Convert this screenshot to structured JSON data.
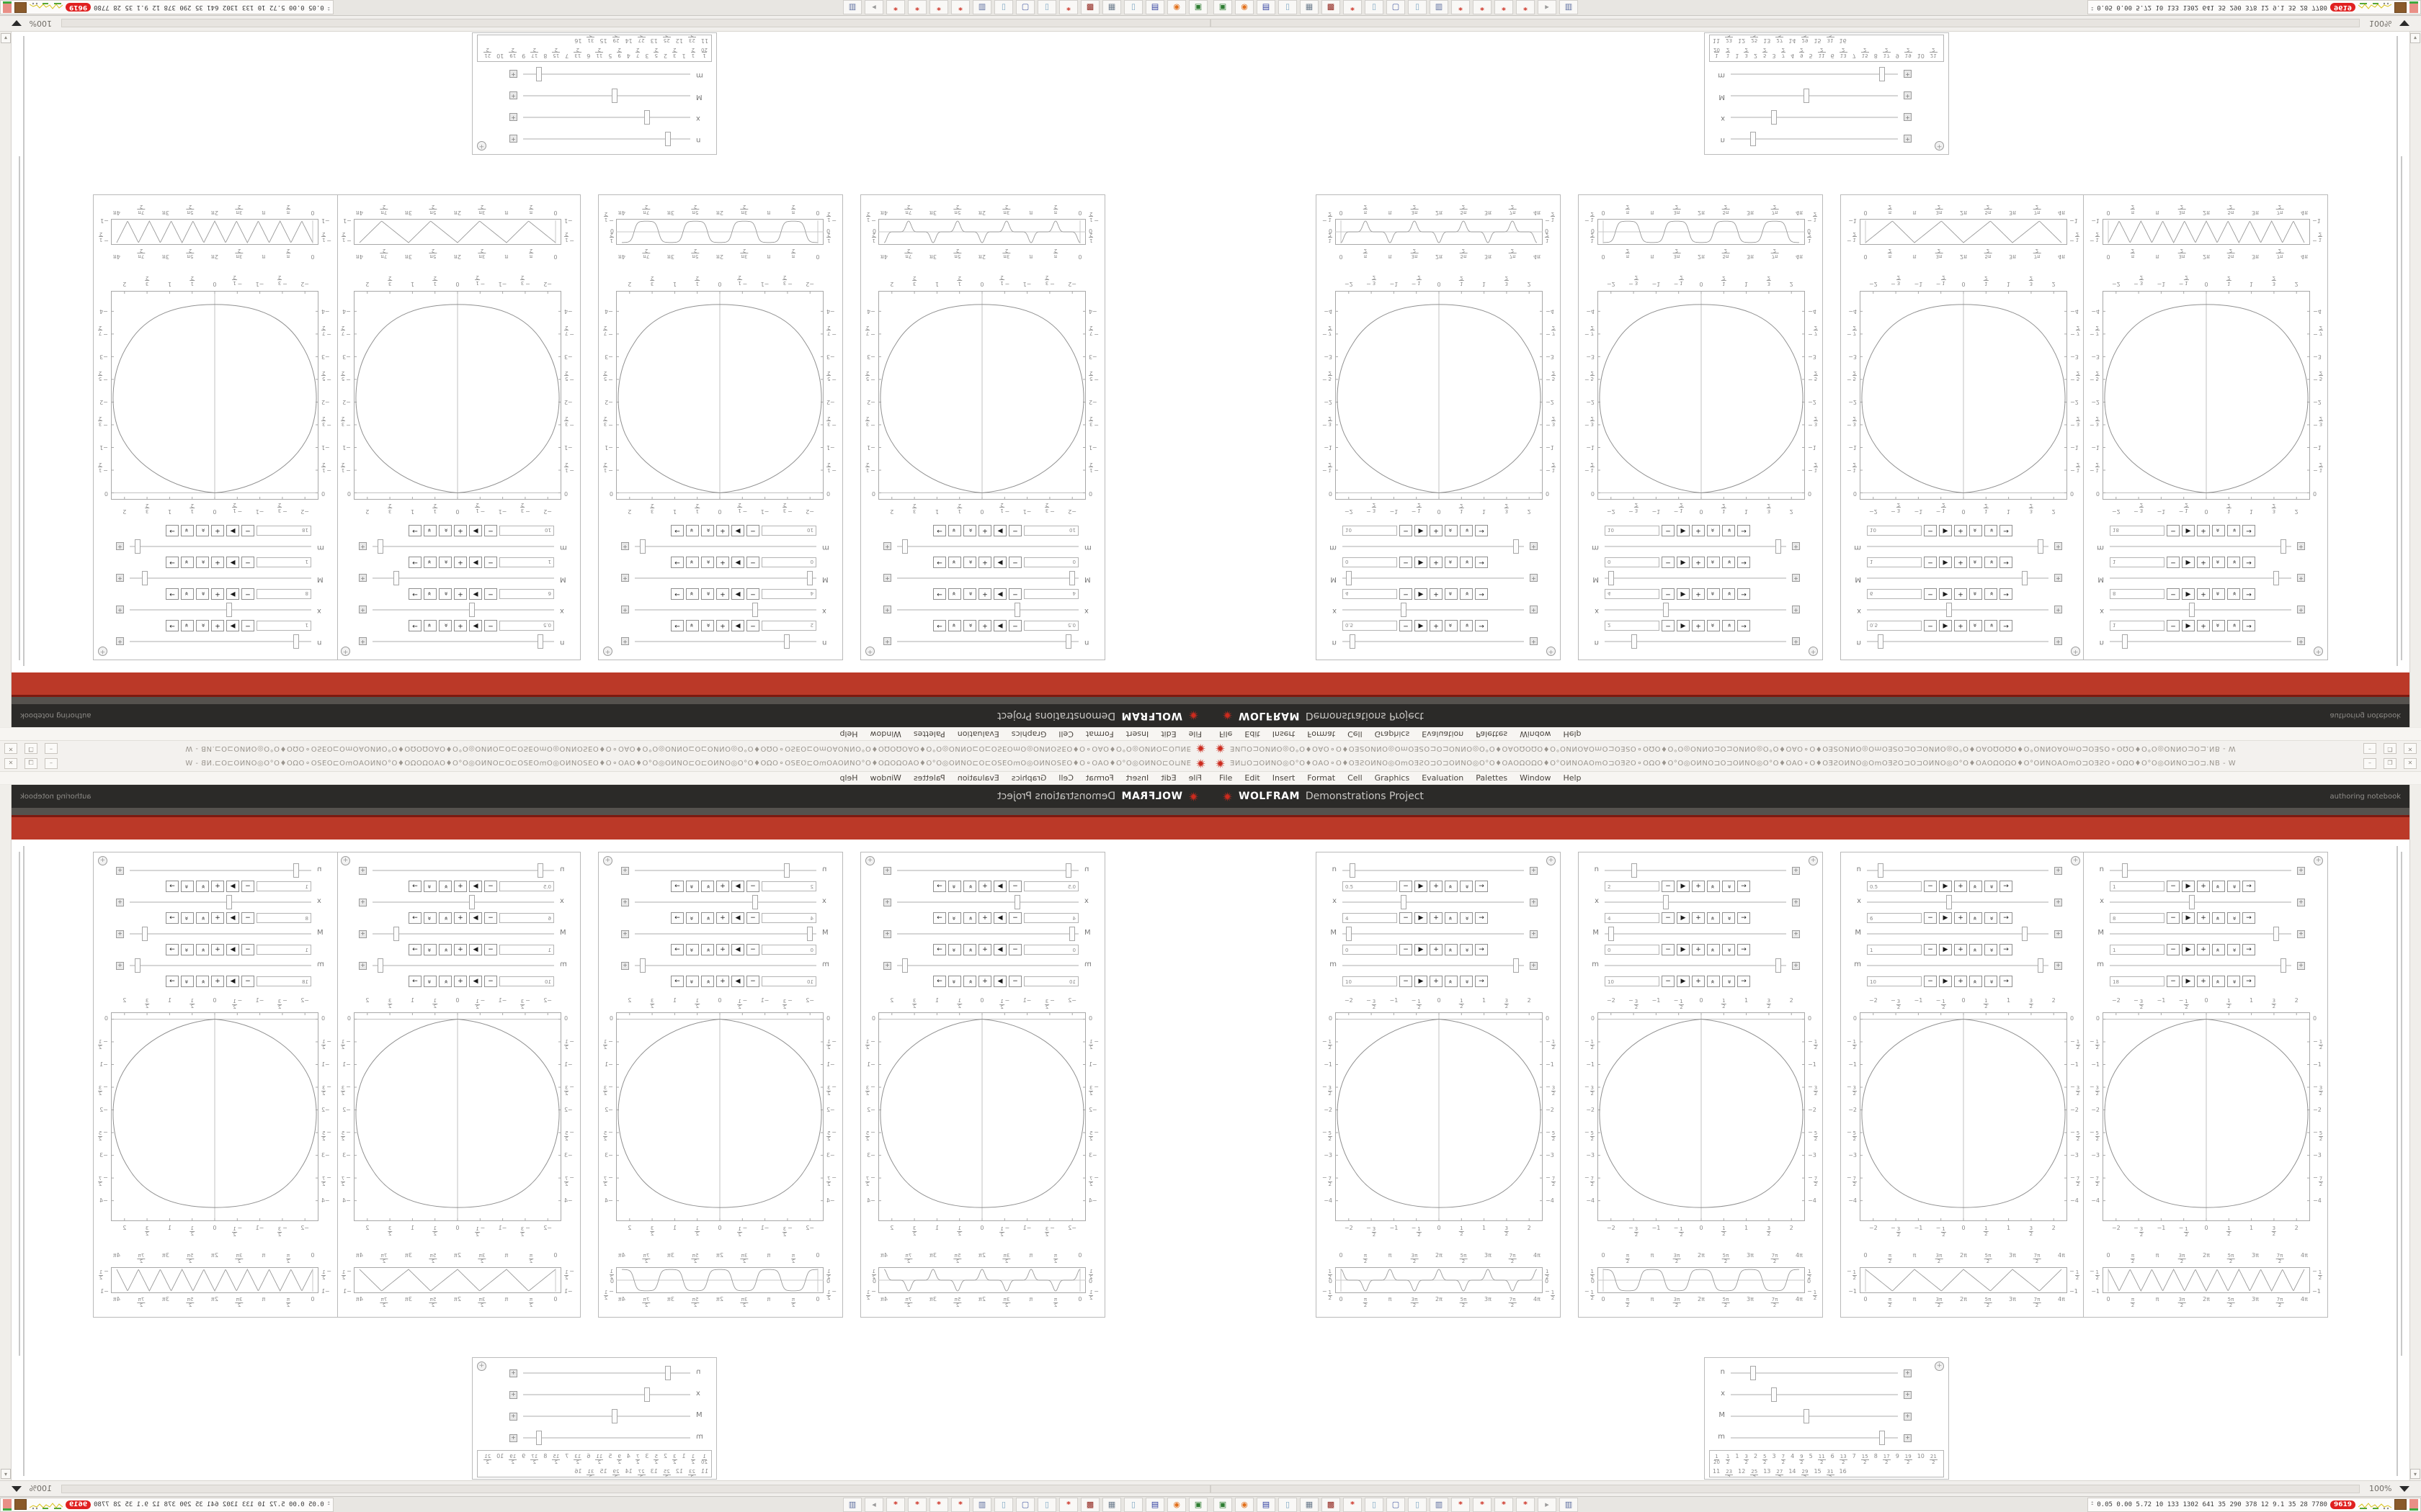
{
  "window": {
    "title_glyphs": "ƎͶ⊔O⊐OͶNO◎O°O♦OΑO⚬O♦OƎƧOͶNO◎OmOƎƧO⊐O⊐OͶNO◎O°O♦OΑOΩOΩO♦O°OͶNOΑOmO⊐OƎƧO⚬OΩO♦O°O◎OͶNO⊐O⊐OͶNO◎O°O♦OΑO⚬O♦OƎƧOͶNO◎OmOƎƧO⊐O⊐OͶNO◎O°O♦OΑOΩOΩO♦O°OͶNOΑOmO⊐OƎƧO⚬OΩO♦O°O◎OͶNO⊐O⊐.NB - W",
    "minimize": "–",
    "restore": "❐",
    "close": "✕"
  },
  "menu": {
    "items": [
      "File",
      "Edit",
      "Insert",
      "Format",
      "Cell",
      "Graphics",
      "Evaluation",
      "Palettes",
      "Window",
      "Help"
    ]
  },
  "banner": {
    "brand_bold": "WOLFRAM",
    "brand_rest": "Demonstrations Project",
    "right_label": "authoring notebook"
  },
  "colors": {
    "banner_bg": "#2b2a28",
    "red_band": "#bb3928",
    "dark_red_line": "#7c1a10",
    "gray_strip": "#55524e",
    "accent_red": "#cc2b1e",
    "badge_red": "#e02020"
  },
  "statusbar": {
    "zoom_level": "100%"
  },
  "taskbar": {
    "icons": [
      {
        "name": "terminal-icon",
        "glyph": "▣",
        "color": "#2e7d32"
      },
      {
        "name": "firefox-icon",
        "glyph": "◉",
        "color": "#e2711d"
      },
      {
        "name": "floppy64-icon",
        "glyph": "▤",
        "color": "#2b3a9e"
      },
      {
        "name": "notepad-icon",
        "glyph": "▯",
        "color": "#7da7c4"
      },
      {
        "name": "calculator-icon",
        "glyph": "▦",
        "color": "#6b7b8c"
      },
      {
        "name": "redapp-icon",
        "glyph": "▩",
        "color": "#8e1f17"
      },
      {
        "name": "mathematica-spikey-icon",
        "glyph": "*",
        "color": "#cc2b1e"
      },
      {
        "name": "notepad-icon",
        "glyph": "▯",
        "color": "#7da7c4"
      },
      {
        "name": "explorer-icon",
        "glyph": "▢",
        "color": "#4a5fa5"
      },
      {
        "name": "notepad-icon",
        "glyph": "▯",
        "color": "#7da7c4"
      },
      {
        "name": "printer-icon",
        "glyph": "▥",
        "color": "#5b6d9e"
      },
      {
        "name": "mathematica-spikey-icon",
        "glyph": "*",
        "color": "#cc2b1e"
      },
      {
        "name": "mathematica-spikey-icon",
        "glyph": "*",
        "color": "#cc2b1e"
      },
      {
        "name": "mathematica-spikey-icon",
        "glyph": "*",
        "color": "#cc2b1e"
      },
      {
        "name": "mathematica-spikey-icon",
        "glyph": "*",
        "color": "#cc2b1e"
      },
      {
        "name": "pin-icon",
        "glyph": "▸",
        "color": "#9a9a9a"
      },
      {
        "name": "document-icon",
        "glyph": "▥",
        "color": "#5b6d9e"
      }
    ],
    "tray_chevrons": "⌃⌃",
    "tray_numbers": "0.05 0.00 5.72  10  133 1302 641  35  290  378  12  9.1  35  28  7780",
    "badge": "9619"
  },
  "chart_data": {
    "panels": [
      {
        "sliders": [
          {
            "label": "n",
            "value": "0.5",
            "frac": 0.04
          },
          {
            "label": "x",
            "value": "4",
            "frac": 0.33
          },
          {
            "label": "M",
            "value": "0",
            "frac": 0.02
          },
          {
            "label": "m",
            "value": "10",
            "frac": 0.97
          }
        ],
        "plot": {
          "type": "line",
          "xticks": [
            "-2",
            "-3/2",
            "-1",
            "-1/2",
            "0",
            "1/2",
            "1",
            "3/2",
            "2"
          ],
          "yticks": [
            "0",
            "-1/2",
            "-1",
            "-3/2",
            "-2",
            "-5/2",
            "-3",
            "-7/2",
            "-4"
          ],
          "xlim": [
            -2.3,
            2.3
          ],
          "ylim": [
            -4.45,
            0.15
          ],
          "curve": "closed egg-shaped blob, top tangent at (0,0), widest ±2.25 at y=-2, bottom (0,-4.15)"
        },
        "wave": {
          "type": "cusp",
          "xticks": [
            "0",
            "π/2",
            "π",
            "3π/2",
            "2π",
            "5π/2",
            "3π",
            "7π/2",
            "4π"
          ],
          "yticks": [
            "1/2",
            "0",
            "-1/2"
          ],
          "xlim_pi": [
            0,
            4
          ],
          "desc": "narrow alternating cusps ±1/2 at multiples of π/2"
        }
      },
      {
        "sliders": [
          {
            "label": "n",
            "value": "2",
            "frac": 0.15
          },
          {
            "label": "x",
            "value": "4",
            "frac": 0.33
          },
          {
            "label": "M",
            "value": "0",
            "frac": 0.02
          },
          {
            "label": "m",
            "value": "10",
            "frac": 0.97
          }
        ],
        "plot": {
          "type": "line",
          "xticks": [
            "-2",
            "-3/2",
            "-1",
            "-1/2",
            "0",
            "1/2",
            "1",
            "3/2",
            "2"
          ],
          "yticks": [
            "0",
            "-1/2",
            "-1",
            "-3/2",
            "-2",
            "-5/2",
            "-3",
            "-7/2",
            "-4"
          ],
          "xlim": [
            -2.3,
            2.3
          ],
          "ylim": [
            -4.45,
            0.15
          ],
          "curve": "closed egg-shaped blob"
        },
        "wave": {
          "type": "smoothsquare",
          "xticks": [
            "0",
            "π/2",
            "π",
            "3π/2",
            "2π",
            "5π/2",
            "3π",
            "7π/2",
            "4π"
          ],
          "yticks": [
            "1/2",
            "0",
            "-1/2"
          ],
          "xlim_pi": [
            0,
            4
          ],
          "desc": "smoothed square wave ±1/2, period π"
        }
      },
      {
        "sliders": [
          {
            "label": "n",
            "value": "0.5",
            "frac": 0.06
          },
          {
            "label": "x",
            "value": "6",
            "frac": 0.45
          },
          {
            "label": "M",
            "value": "1",
            "frac": 0.88
          },
          {
            "label": "m",
            "value": "10",
            "frac": 0.97
          }
        ],
        "plot": {
          "type": "line",
          "xticks": [
            "-2",
            "-3/2",
            "-1",
            "-1/2",
            "0",
            "1/2",
            "1",
            "3/2",
            "2"
          ],
          "yticks": [
            "0",
            "-1/2",
            "-1",
            "-3/2",
            "-2",
            "-5/2",
            "-3",
            "-7/2",
            "-4"
          ],
          "xlim": [
            -2.3,
            2.3
          ],
          "ylim": [
            -4.45,
            0.15
          ],
          "curve": "closed rounded-square blob"
        },
        "wave": {
          "type": "bigtriangle",
          "xticks": [
            "0",
            "π/2",
            "π",
            "3π/2",
            "2π",
            "5π/2",
            "3π",
            "7π/2",
            "4π"
          ],
          "yticks": [
            "-1/2",
            "-1"
          ],
          "xlim_pi": [
            0,
            4
          ],
          "desc": "triangle wave, peaks at kπ, range -1/2..-1"
        }
      },
      {
        "sliders": [
          {
            "label": "n",
            "value": "1",
            "frac": 0.07
          },
          {
            "label": "x",
            "value": "8",
            "frac": 0.45
          },
          {
            "label": "M",
            "value": "1",
            "frac": 0.93
          },
          {
            "label": "m",
            "value": "18",
            "frac": 0.97
          }
        ],
        "plot": {
          "type": "line",
          "xticks": [
            "-2",
            "-3/2",
            "-1",
            "-1/2",
            "0",
            "1/2",
            "1",
            "3/2",
            "2"
          ],
          "yticks": [
            "0",
            "-1/2",
            "-1",
            "-3/2",
            "-2",
            "-5/2",
            "-3",
            "-7/2",
            "-4"
          ],
          "xlim": [
            -2.3,
            2.3
          ],
          "ylim": [
            -4.45,
            0.15
          ],
          "curve": "closed rounded-square blob"
        },
        "wave": {
          "type": "smalltriangle",
          "xticks": [
            "0",
            "π/2",
            "π",
            "3π/2",
            "2π",
            "5π/2",
            "3π",
            "7π/2",
            "4π"
          ],
          "yticks": [
            "-1/2",
            "-1"
          ],
          "xlim_pi": [
            0,
            4
          ],
          "desc": "fine triangle wave, 9 teeth, range -1/2..-1"
        }
      }
    ],
    "mini_panel": {
      "sliders": [
        {
          "label": "n",
          "frac": 0.12
        },
        {
          "label": "x",
          "frac": 0.25
        },
        {
          "label": "M",
          "frac": 0.45
        },
        {
          "label": "m",
          "frac": 0.92
        }
      ],
      "sequence": [
        "1/20",
        "1/2",
        "1",
        "3/2",
        "2",
        "5/2",
        "3",
        "7/2",
        "4",
        "9/2",
        "5",
        "11/2",
        "6",
        "13/2",
        "7",
        "15/2",
        "8",
        "17/2",
        "9",
        "19/2",
        "10",
        "21/2",
        "11",
        "23/2",
        "12",
        "25/2",
        "13",
        "27/2",
        "14",
        "29/2",
        "15",
        "31/2",
        "16"
      ]
    },
    "control_buttons": [
      "−",
      "▶",
      "+",
      "chev-up",
      "chev-down",
      "→"
    ]
  }
}
